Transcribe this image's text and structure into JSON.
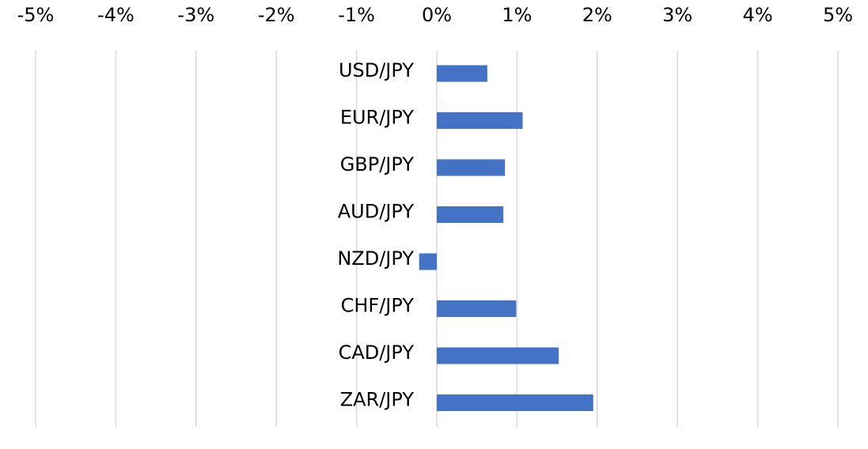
{
  "chart_data": {
    "type": "bar",
    "orientation": "horizontal",
    "categories": [
      "USD/JPY",
      "EUR/JPY",
      "GBP/JPY",
      "AUD/JPY",
      "NZD/JPY",
      "CHF/JPY",
      "CAD/JPY",
      "ZAR/JPY"
    ],
    "values": [
      0.63,
      1.07,
      0.85,
      0.83,
      -0.22,
      0.99,
      1.52,
      1.95
    ],
    "value_unit": "%",
    "xlim": [
      -5,
      5
    ],
    "xticks": [
      -5,
      -4,
      -3,
      -2,
      -1,
      0,
      1,
      2,
      3,
      4,
      5
    ],
    "xtick_labels": [
      "-5%",
      "-4%",
      "-3%",
      "-2%",
      "-1%",
      "0%",
      "1%",
      "2%",
      "3%",
      "4%",
      "5%"
    ],
    "xaxis_position": "top",
    "grid": true,
    "bar_color": "#4472c4",
    "grid_color": "#d9d9d9",
    "category_label_position": "left of zero line",
    "title": "",
    "xlabel": "",
    "ylabel": ""
  }
}
